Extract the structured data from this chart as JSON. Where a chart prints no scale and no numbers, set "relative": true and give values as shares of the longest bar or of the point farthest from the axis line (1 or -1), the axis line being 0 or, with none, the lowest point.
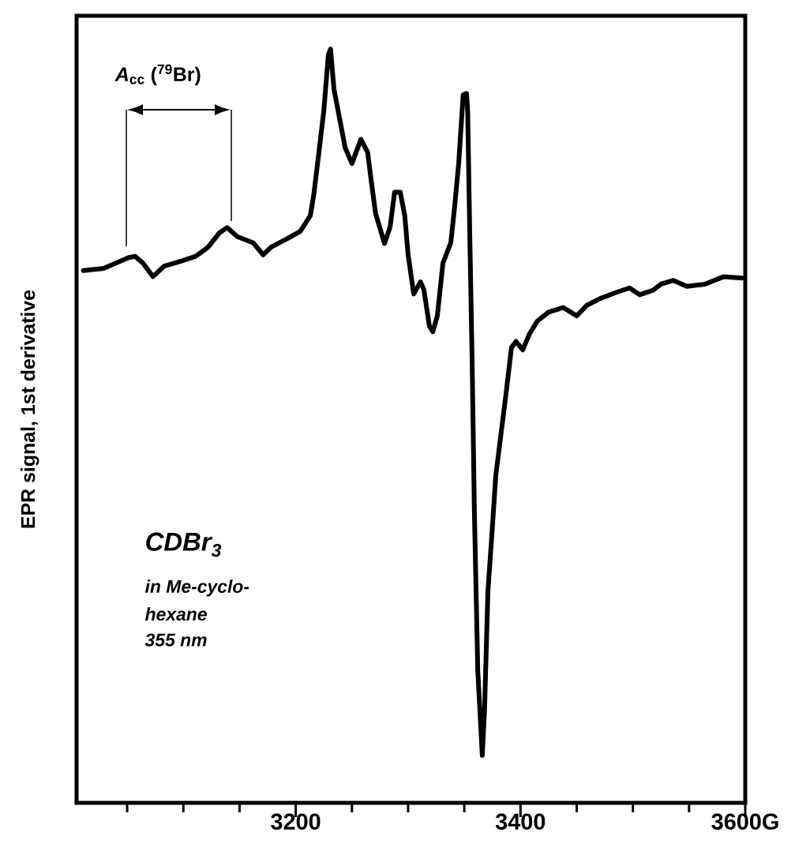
{
  "chart_data": {
    "type": "line",
    "ylabel": "EPR signal, 1st derivative",
    "relative": true,
    "annotations": [
      "*A*$_{cc}$ ($^{79}$Br)",
      "CDBr$_{3}$",
      "in Me-cyclo-",
      "hexane",
      "355 nm"
    ],
    "xlim": [
      3005,
      3600
    ],
    "xticks": [
      {
        "value": 3050,
        "label": null
      },
      {
        "value": 3100,
        "label": null
      },
      {
        "value": 3150,
        "label": null
      },
      3200,
      {
        "value": 3250,
        "label": null
      },
      {
        "value": 3300,
        "label": null
      },
      {
        "value": 3350,
        "label": null
      },
      3400,
      {
        "value": 3450,
        "label": null
      },
      {
        "value": 3500,
        "label": null
      },
      {
        "value": 3550,
        "label": null
      },
      {
        "value": 3600,
        "label": "3600G"
      }
    ],
    "tick_labels": "x",
    "series": [
      {
        "color": "#000000",
        "x": [
          3011,
          3029,
          3051,
          3057,
          3064,
          3073,
          3083,
          3099,
          3111,
          3122,
          3132,
          3139,
          3148,
          3162,
          3171,
          3178,
          3192,
          3204,
          3213,
          3216,
          3220,
          3225,
          3229,
          3231,
          3234,
          3239,
          3244,
          3250,
          3258,
          3264,
          3267,
          3271,
          3279,
          3284,
          3288,
          3293,
          3297,
          3300,
          3305,
          3311,
          3314,
          3319,
          3322,
          3326,
          3331,
          3338,
          3341,
          3345,
          3349,
          3352,
          3353,
          3355,
          3357,
          3359,
          3362,
          3366,
          3368,
          3371,
          3375,
          3378,
          3387,
          3392,
          3396,
          3402,
          3408,
          3415,
          3425,
          3438,
          3450,
          3459,
          3471,
          3485,
          3497,
          3506,
          3518,
          3525,
          3536,
          3548,
          3564,
          3581,
          3597
        ],
        "values": [
          0.706,
          0.709,
          0.723,
          0.725,
          0.716,
          0.698,
          0.712,
          0.719,
          0.725,
          0.737,
          0.756,
          0.763,
          0.751,
          0.743,
          0.727,
          0.737,
          0.748,
          0.758,
          0.779,
          0.806,
          0.855,
          0.918,
          0.992,
          1.0,
          0.947,
          0.908,
          0.869,
          0.848,
          0.88,
          0.863,
          0.827,
          0.782,
          0.742,
          0.764,
          0.81,
          0.81,
          0.779,
          0.727,
          0.675,
          0.691,
          0.681,
          0.632,
          0.625,
          0.646,
          0.716,
          0.743,
          0.785,
          0.848,
          0.939,
          0.941,
          0.918,
          0.743,
          0.583,
          0.384,
          0.175,
          0.063,
          0.123,
          0.28,
          0.366,
          0.434,
          0.541,
          0.604,
          0.612,
          0.601,
          0.622,
          0.639,
          0.651,
          0.657,
          0.646,
          0.66,
          0.669,
          0.677,
          0.683,
          0.674,
          0.68,
          0.688,
          0.693,
          0.685,
          0.688,
          0.698,
          0.696
        ]
      }
    ]
  }
}
